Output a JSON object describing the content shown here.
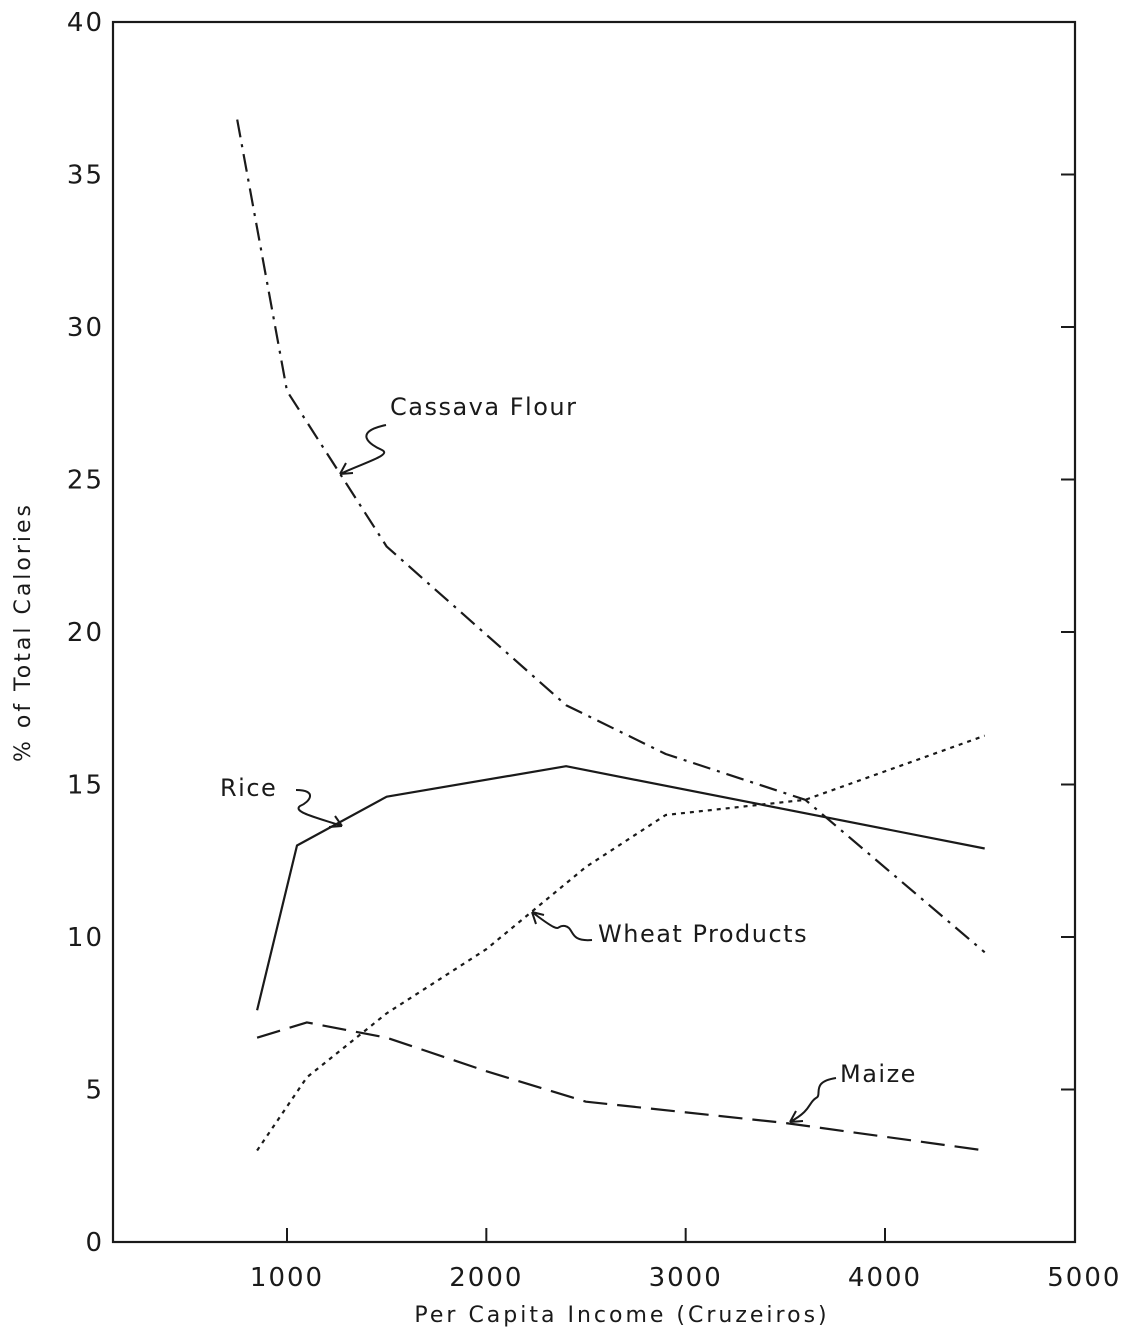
{
  "chart_data": {
    "type": "line",
    "title": "",
    "xlabel": "Per Capita Income (Cruzeiros)",
    "ylabel": "% of Total Calories",
    "xlim": [
      300,
      5000
    ],
    "ylim": [
      0,
      40
    ],
    "x_ticks": [
      1000,
      2000,
      3000,
      4000,
      5000
    ],
    "y_ticks": [
      0,
      5,
      10,
      15,
      20,
      25,
      30,
      35,
      40
    ],
    "grid": false,
    "legend": "none (series labeled by annotations)",
    "series": [
      {
        "name": "Cassava Flour",
        "style": "dash-dot",
        "points": [
          [
            750,
            36.8
          ],
          [
            1000,
            27.9
          ],
          [
            1500,
            22.8
          ],
          [
            2400,
            17.6
          ],
          [
            2900,
            16.0
          ],
          [
            3600,
            14.5
          ],
          [
            4500,
            9.5
          ]
        ]
      },
      {
        "name": "Rice",
        "style": "solid",
        "points": [
          [
            850,
            7.6
          ],
          [
            1050,
            13.0
          ],
          [
            1500,
            14.6
          ],
          [
            2400,
            15.6
          ],
          [
            4500,
            12.9
          ]
        ]
      },
      {
        "name": "Wheat Products",
        "style": "dotted",
        "points": [
          [
            850,
            3.0
          ],
          [
            1100,
            5.4
          ],
          [
            1500,
            7.5
          ],
          [
            2000,
            9.6
          ],
          [
            2500,
            12.3
          ],
          [
            2900,
            14.0
          ],
          [
            3600,
            14.5
          ],
          [
            4500,
            16.6
          ]
        ]
      },
      {
        "name": "Maize",
        "style": "long-dash",
        "points": [
          [
            850,
            6.7
          ],
          [
            1100,
            7.2
          ],
          [
            1500,
            6.7
          ],
          [
            2000,
            5.6
          ],
          [
            2500,
            4.6
          ],
          [
            3500,
            3.9
          ],
          [
            4500,
            3.0
          ]
        ]
      }
    ]
  }
}
